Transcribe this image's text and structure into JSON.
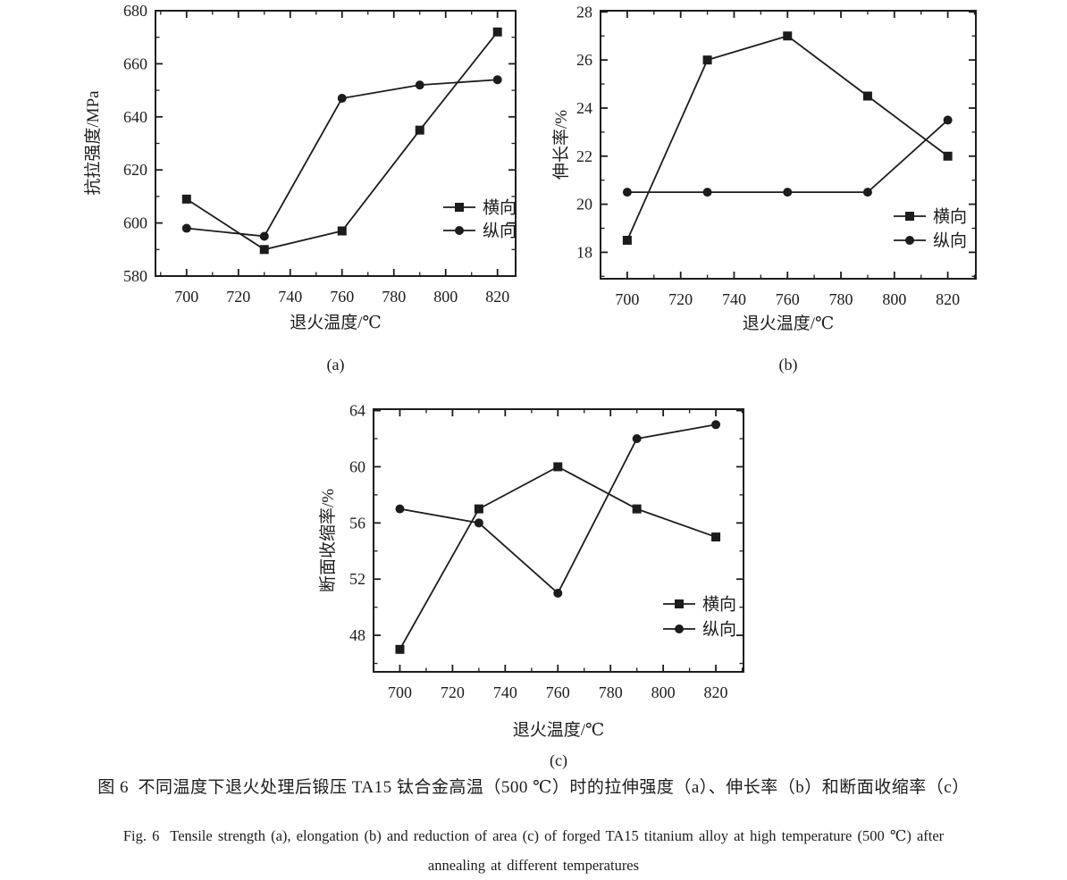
{
  "page": {
    "background": "#ffffff",
    "ink": "#1c1c1c"
  },
  "captions": {
    "zh": "图 6  不同温度下退火处理后锻压 TA15 钛合金高温（500 ℃）时的拉伸强度（a）、伸长率（b）和断面收缩率（c）",
    "en_line1": "Fig. 6  Tensile strength (a), elongation (b) and reduction of area (c) of forged TA15 titanium alloy at high temperature (500 ℃) after",
    "en_line2": "annealing at different temperatures"
  },
  "chart_data": [
    {
      "id": "a",
      "type": "line",
      "panel_label": "(a)",
      "xlabel": "退火温度/℃",
      "ylabel": "抗拉强度/MPa",
      "x": [
        700,
        730,
        760,
        790,
        820
      ],
      "series": [
        {
          "name": "横向",
          "marker": "square",
          "values": [
            609,
            590,
            597,
            635,
            672
          ]
        },
        {
          "name": "纵向",
          "marker": "circle",
          "values": [
            598,
            595,
            647,
            652,
            654
          ]
        }
      ],
      "xlim": [
        688,
        827
      ],
      "ylim": [
        580,
        680
      ],
      "x_major_ticks": [
        700,
        720,
        740,
        760,
        780,
        800,
        820
      ],
      "x_minor_step": 10,
      "y_major_ticks": [
        580,
        600,
        620,
        640,
        660,
        680
      ],
      "y_minor_step": 10,
      "grid": false,
      "legend_position": "lower right inside"
    },
    {
      "id": "b",
      "type": "line",
      "panel_label": "(b)",
      "xlabel": "退火温度/℃",
      "ylabel": "伸长率/%",
      "x": [
        700,
        730,
        760,
        790,
        820
      ],
      "series": [
        {
          "name": "横向",
          "marker": "square",
          "values": [
            18.5,
            26,
            27,
            24.5,
            22
          ]
        },
        {
          "name": "纵向",
          "marker": "circle",
          "values": [
            20.5,
            20.5,
            20.5,
            20.5,
            23.5
          ]
        }
      ],
      "xlim": [
        690,
        830.5
      ],
      "ylim": [
        16.9,
        28.05
      ],
      "x_major_ticks": [
        700,
        720,
        740,
        760,
        780,
        800,
        820
      ],
      "x_minor_step": 10,
      "y_major_ticks": [
        18,
        20,
        22,
        24,
        26,
        28
      ],
      "y_minor_step": 1,
      "grid": false,
      "legend_position": "lower right inside"
    },
    {
      "id": "c",
      "type": "line",
      "panel_label": "(c)",
      "xlabel": "退火温度/℃",
      "ylabel": "断面收缩率/%",
      "x": [
        700,
        730,
        760,
        790,
        820
      ],
      "series": [
        {
          "name": "横向",
          "marker": "square",
          "values": [
            47,
            57,
            60,
            57,
            55
          ]
        },
        {
          "name": "纵向",
          "marker": "circle",
          "values": [
            57,
            56,
            51,
            62,
            63
          ]
        }
      ],
      "xlim": [
        690,
        830.5
      ],
      "ylim": [
        45.4,
        64.1
      ],
      "x_major_ticks": [
        700,
        720,
        740,
        760,
        780,
        800,
        820
      ],
      "x_minor_step": 10,
      "y_major_ticks": [
        48,
        52,
        56,
        60,
        64
      ],
      "y_minor_step": 2,
      "grid": false,
      "legend_position": "lower right inside"
    }
  ]
}
